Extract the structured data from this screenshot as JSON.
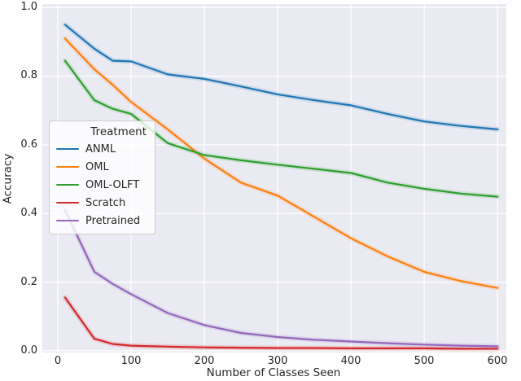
{
  "figure": {
    "xlabel": "Number of Classes Seen",
    "ylabel": "Accuracy",
    "legend_title": "Treatment"
  },
  "colors": {
    "figure_bg": "#ffffff",
    "axes_bg": "#eaeaf2",
    "grid": "#ffffff",
    "text": "#262626",
    "anml": "#1f77b4",
    "oml": "#ff7f0e",
    "oml_olft": "#2ca02c",
    "scratch": "#d62728",
    "pretrained": "#9467bd"
  },
  "chart_data": {
    "type": "line",
    "title": "",
    "xlabel": "Number of Classes Seen",
    "ylabel": "Accuracy",
    "grid": true,
    "legend_position": "upper left inside axes",
    "legend_title": "Treatment",
    "xlim": [
      -21,
      612
    ],
    "ylim": [
      -0.005,
      1.01
    ],
    "xticks": [
      0,
      100,
      200,
      300,
      400,
      500,
      600
    ],
    "ytick_labels": [
      "0.0",
      "0.2",
      "0.4",
      "0.6",
      "0.8",
      "1.0"
    ],
    "ytick_values": [
      0.0,
      0.2,
      0.4,
      0.6,
      0.8,
      1.0
    ],
    "x": [
      10,
      50,
      75,
      100,
      150,
      200,
      250,
      300,
      350,
      400,
      450,
      500,
      550,
      600
    ],
    "series": [
      {
        "name": "ANML",
        "color": "#1f77b4",
        "values": [
          0.95,
          0.88,
          0.845,
          0.843,
          0.805,
          0.792,
          0.77,
          0.747,
          0.73,
          0.715,
          0.69,
          0.668,
          0.655,
          0.645
        ]
      },
      {
        "name": "OML",
        "color": "#ff7f0e",
        "values": [
          0.91,
          0.82,
          0.775,
          0.725,
          0.645,
          0.56,
          0.49,
          0.452,
          0.39,
          0.328,
          0.275,
          0.23,
          0.203,
          0.183
        ]
      },
      {
        "name": "OML-OLFT",
        "color": "#2ca02c",
        "values": [
          0.845,
          0.73,
          0.705,
          0.69,
          0.605,
          0.57,
          0.555,
          0.542,
          0.53,
          0.518,
          0.49,
          0.472,
          0.458,
          0.449
        ]
      },
      {
        "name": "Scratch",
        "color": "#d62728",
        "values": [
          0.155,
          0.035,
          0.02,
          0.015,
          0.012,
          0.01,
          0.009,
          0.008,
          0.008,
          0.007,
          0.007,
          0.007,
          0.006,
          0.006
        ]
      },
      {
        "name": "Pretrained",
        "color": "#9467bd",
        "values": [
          0.41,
          0.23,
          0.195,
          0.165,
          0.11,
          0.075,
          0.052,
          0.04,
          0.032,
          0.027,
          0.022,
          0.018,
          0.015,
          0.013
        ]
      }
    ],
    "ci_band": true
  }
}
